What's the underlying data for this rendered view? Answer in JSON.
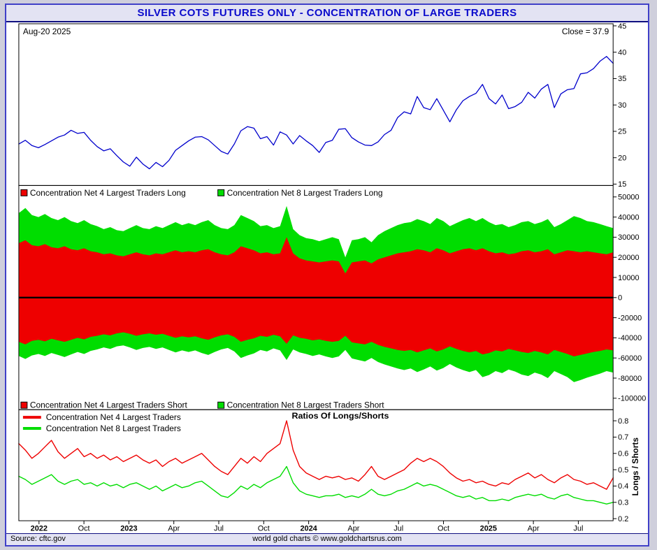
{
  "window": {
    "title": "SILVER COTS FUTURES ONLY - CONCENTRATION OF LARGE TRADERS"
  },
  "footer": {
    "source": "Source: cftc.gov",
    "credit": "world gold charts © www.goldchartsrus.com"
  },
  "colors": {
    "title_blue": "#0b0bcc",
    "frame_blue": "#4040c8",
    "price_line_blue": "#0000cc",
    "net4_red": "#ee0000",
    "net8_green": "#00dd00",
    "zero_line_black": "#000000",
    "bar_background": "#e3e3f3"
  },
  "xaxis": {
    "labels": [
      {
        "text": "2022",
        "bold": true
      },
      {
        "text": "Oct",
        "bold": false
      },
      {
        "text": "2023",
        "bold": true
      },
      {
        "text": "Apr",
        "bold": false
      },
      {
        "text": "Jul",
        "bold": false
      },
      {
        "text": "Oct",
        "bold": false
      },
      {
        "text": "2024",
        "bold": true
      },
      {
        "text": "Apr",
        "bold": false
      },
      {
        "text": "Jul",
        "bold": false
      },
      {
        "text": "Oct",
        "bold": false
      },
      {
        "text": "2025",
        "bold": true
      },
      {
        "text": "Apr",
        "bold": false
      },
      {
        "text": "Jul",
        "bold": false
      }
    ]
  },
  "chart_data": [
    {
      "type": "line",
      "name": "silver-price-panel",
      "annotations": {
        "date": "Aug-20 2025",
        "close": "Close = 37.9"
      },
      "ylim": [
        15,
        45
      ],
      "yticks": [
        45,
        40,
        35,
        30,
        25,
        20,
        15
      ],
      "series": [
        {
          "name": "Silver Futures Close",
          "color": "#0000cc",
          "values": [
            22.6,
            23.3,
            22.3,
            21.9,
            22.5,
            23.2,
            23.9,
            24.3,
            25.2,
            24.6,
            24.8,
            23.3,
            22.1,
            21.3,
            21.7,
            20.4,
            19.2,
            18.4,
            20.1,
            18.8,
            17.9,
            19.1,
            18.3,
            19.5,
            21.4,
            22.3,
            23.2,
            23.9,
            24.0,
            23.4,
            22.3,
            21.2,
            20.7,
            22.6,
            25.1,
            25.9,
            25.6,
            23.6,
            24.0,
            22.4,
            24.9,
            24.3,
            22.6,
            24.2,
            23.2,
            22.3,
            21.0,
            22.9,
            23.3,
            25.4,
            25.5,
            23.8,
            23.0,
            22.4,
            22.3,
            23.0,
            24.4,
            25.2,
            27.6,
            28.7,
            28.3,
            31.6,
            29.5,
            29.1,
            31.2,
            29.0,
            26.8,
            29.1,
            30.8,
            31.6,
            32.2,
            33.9,
            31.2,
            30.2,
            31.9,
            29.3,
            29.7,
            30.5,
            32.4,
            31.3,
            33.0,
            33.9,
            29.5,
            32.1,
            32.9,
            33.1,
            35.9,
            36.1,
            36.9,
            38.3,
            39.2,
            37.9
          ]
        }
      ]
    },
    {
      "type": "area",
      "name": "concentration-net-positions-panel",
      "ylim": [
        -100000,
        50000
      ],
      "yticks": [
        50000,
        40000,
        30000,
        20000,
        10000,
        0,
        -20000,
        -40000,
        -60000,
        -80000,
        -100000
      ],
      "zero_line": true,
      "legend_top": [
        {
          "label": "Concentration Net 4 Largest Traders Long",
          "color": "#ee0000"
        },
        {
          "label": "Concentration Net 8 Largest Traders Long",
          "color": "#00dd00"
        }
      ],
      "legend_bottom": [
        {
          "label": "Concentration Net 4 Largest Traders Short",
          "color": "#ee0000"
        },
        {
          "label": "Concentration Net 8 Largest Traders Short",
          "color": "#00dd00"
        }
      ],
      "series": [
        {
          "name": "Net 8 Largest Traders Long",
          "color": "#00dd00",
          "values": [
            42000,
            44500,
            41000,
            40000,
            41500,
            39500,
            38500,
            40000,
            38000,
            37000,
            38500,
            36500,
            35500,
            34000,
            35000,
            33500,
            33000,
            34500,
            36000,
            34500,
            34000,
            35500,
            34500,
            36000,
            37500,
            36000,
            37000,
            36000,
            37500,
            38500,
            36000,
            34500,
            34000,
            36000,
            41000,
            39500,
            38000,
            35500,
            36000,
            34500,
            35500,
            45500,
            34000,
            31000,
            29500,
            29000,
            28000,
            29000,
            30000,
            29000,
            20000,
            28500,
            29000,
            30000,
            27500,
            31000,
            33000,
            34500,
            36000,
            37000,
            37500,
            39000,
            38000,
            36500,
            39500,
            38000,
            35500,
            37000,
            38500,
            39500,
            38000,
            39500,
            37500,
            36000,
            36500,
            35000,
            36000,
            37500,
            38000,
            36500,
            37500,
            39000,
            35000,
            36500,
            38500,
            40500,
            39500,
            38000,
            37500,
            36500,
            35500,
            34500
          ]
        },
        {
          "name": "Net 4 Largest Traders Long",
          "color": "#ee0000",
          "values": [
            27000,
            28500,
            26000,
            25500,
            26500,
            25000,
            24500,
            25500,
            24000,
            23500,
            24500,
            23000,
            22500,
            21500,
            22000,
            21000,
            20500,
            21500,
            22500,
            21500,
            21000,
            22000,
            21500,
            22500,
            23500,
            22500,
            23000,
            22500,
            23500,
            24000,
            22500,
            21500,
            21000,
            22500,
            25500,
            24500,
            23500,
            22000,
            22500,
            21500,
            22000,
            30000,
            22000,
            19500,
            18500,
            18000,
            17500,
            18000,
            18500,
            18000,
            12000,
            17500,
            18000,
            18500,
            17000,
            19000,
            20000,
            21000,
            22000,
            22500,
            23000,
            24000,
            23500,
            22500,
            24500,
            23500,
            22000,
            23000,
            24000,
            24500,
            23500,
            24500,
            23000,
            22000,
            22500,
            21500,
            22000,
            23000,
            23500,
            22500,
            23000,
            24000,
            21500,
            22500,
            23500,
            23000,
            22500,
            23000,
            22500,
            22000,
            21500,
            22500
          ]
        },
        {
          "name": "Net 8 Largest Traders Short",
          "color": "#00dd00",
          "values": [
            -58000,
            -61000,
            -57500,
            -56000,
            -58000,
            -55000,
            -57000,
            -59000,
            -56500,
            -54000,
            -56000,
            -53000,
            -51500,
            -49500,
            -51000,
            -48500,
            -47500,
            -49500,
            -52000,
            -50000,
            -49000,
            -51000,
            -49500,
            -52000,
            -54500,
            -52500,
            -54000,
            -52500,
            -55000,
            -57000,
            -54000,
            -51500,
            -50000,
            -53500,
            -60000,
            -57500,
            -55500,
            -52000,
            -53500,
            -50500,
            -52500,
            -62000,
            -51500,
            -54500,
            -56000,
            -58000,
            -56500,
            -58500,
            -60000,
            -58500,
            -52000,
            -60500,
            -62000,
            -63500,
            -60000,
            -64000,
            -66500,
            -68500,
            -70500,
            -72000,
            -70500,
            -74000,
            -71500,
            -68500,
            -72500,
            -70000,
            -66000,
            -69500,
            -72000,
            -74000,
            -72000,
            -79000,
            -77000,
            -73000,
            -75000,
            -71500,
            -73500,
            -76500,
            -78000,
            -74500,
            -76500,
            -80000,
            -73000,
            -76000,
            -79000,
            -84000,
            -82000,
            -79500,
            -77500,
            -75500,
            -73000,
            -74500
          ]
        },
        {
          "name": "Net 4 Largest Traders Short",
          "color": "#ee0000",
          "values": [
            -44000,
            -46500,
            -43000,
            -42000,
            -43500,
            -41000,
            -42500,
            -44000,
            -42000,
            -40000,
            -41500,
            -39000,
            -38000,
            -36500,
            -37500,
            -35500,
            -34500,
            -36000,
            -38000,
            -36500,
            -35500,
            -37000,
            -36000,
            -38000,
            -40000,
            -38500,
            -39500,
            -38500,
            -40500,
            -42000,
            -39500,
            -37500,
            -36500,
            -39000,
            -44000,
            -42000,
            -40500,
            -38000,
            -39000,
            -37000,
            -38500,
            -46000,
            -37500,
            -40000,
            -41000,
            -42500,
            -41500,
            -43000,
            -44000,
            -43000,
            -38000,
            -44500,
            -45500,
            -46500,
            -44000,
            -47000,
            -49000,
            -50500,
            -52000,
            -53000,
            -52000,
            -54500,
            -52500,
            -50500,
            -53500,
            -51500,
            -48500,
            -51000,
            -53000,
            -54500,
            -53000,
            -56500,
            -55000,
            -52500,
            -53500,
            -51000,
            -52500,
            -54000,
            -55000,
            -53000,
            -54500,
            -56500,
            -52000,
            -54000,
            -56000,
            -58500,
            -57000,
            -55500,
            -54000,
            -53000,
            -51500,
            -52500
          ]
        }
      ]
    },
    {
      "type": "line",
      "name": "ratios-panel",
      "title": "Ratios Of Longs/Shorts",
      "ylabel": "Longs / Shorts",
      "ylim": [
        0.2,
        0.8
      ],
      "yticks": [
        0.8,
        0.7,
        0.6,
        0.5,
        0.4,
        0.3,
        0.2
      ],
      "legend": [
        {
          "label": "Concentration Net 4 Largest Traders",
          "color": "#ee0000"
        },
        {
          "label": "Concentration Net 8 Largest Traders",
          "color": "#00dd00"
        }
      ],
      "series": [
        {
          "name": "Net 4 Largest Traders Ratio",
          "color": "#ee0000",
          "values": [
            0.66,
            0.62,
            0.57,
            0.6,
            0.64,
            0.68,
            0.61,
            0.57,
            0.6,
            0.63,
            0.58,
            0.6,
            0.57,
            0.59,
            0.56,
            0.58,
            0.55,
            0.57,
            0.59,
            0.56,
            0.54,
            0.56,
            0.52,
            0.55,
            0.57,
            0.54,
            0.56,
            0.58,
            0.6,
            0.56,
            0.52,
            0.49,
            0.47,
            0.52,
            0.57,
            0.54,
            0.58,
            0.55,
            0.6,
            0.63,
            0.66,
            0.8,
            0.62,
            0.52,
            0.48,
            0.46,
            0.44,
            0.46,
            0.45,
            0.46,
            0.44,
            0.45,
            0.43,
            0.47,
            0.52,
            0.46,
            0.44,
            0.46,
            0.48,
            0.5,
            0.54,
            0.57,
            0.55,
            0.57,
            0.55,
            0.52,
            0.48,
            0.45,
            0.43,
            0.44,
            0.42,
            0.43,
            0.41,
            0.4,
            0.42,
            0.41,
            0.44,
            0.46,
            0.48,
            0.45,
            0.47,
            0.44,
            0.42,
            0.45,
            0.47,
            0.44,
            0.43,
            0.41,
            0.42,
            0.4,
            0.38,
            0.45
          ]
        },
        {
          "name": "Net 8 Largest Traders Ratio",
          "color": "#00dd00",
          "values": [
            0.46,
            0.44,
            0.41,
            0.43,
            0.45,
            0.47,
            0.43,
            0.41,
            0.43,
            0.44,
            0.41,
            0.42,
            0.4,
            0.42,
            0.4,
            0.41,
            0.39,
            0.41,
            0.42,
            0.4,
            0.38,
            0.4,
            0.37,
            0.39,
            0.41,
            0.39,
            0.4,
            0.42,
            0.43,
            0.4,
            0.37,
            0.34,
            0.33,
            0.36,
            0.4,
            0.38,
            0.41,
            0.39,
            0.42,
            0.44,
            0.46,
            0.52,
            0.42,
            0.37,
            0.35,
            0.34,
            0.33,
            0.34,
            0.34,
            0.35,
            0.33,
            0.34,
            0.33,
            0.35,
            0.38,
            0.35,
            0.34,
            0.35,
            0.37,
            0.38,
            0.4,
            0.42,
            0.4,
            0.41,
            0.4,
            0.38,
            0.36,
            0.34,
            0.33,
            0.34,
            0.32,
            0.33,
            0.31,
            0.31,
            0.32,
            0.31,
            0.33,
            0.34,
            0.35,
            0.34,
            0.35,
            0.33,
            0.32,
            0.34,
            0.35,
            0.33,
            0.32,
            0.31,
            0.31,
            0.3,
            0.29,
            0.3
          ]
        }
      ]
    }
  ]
}
